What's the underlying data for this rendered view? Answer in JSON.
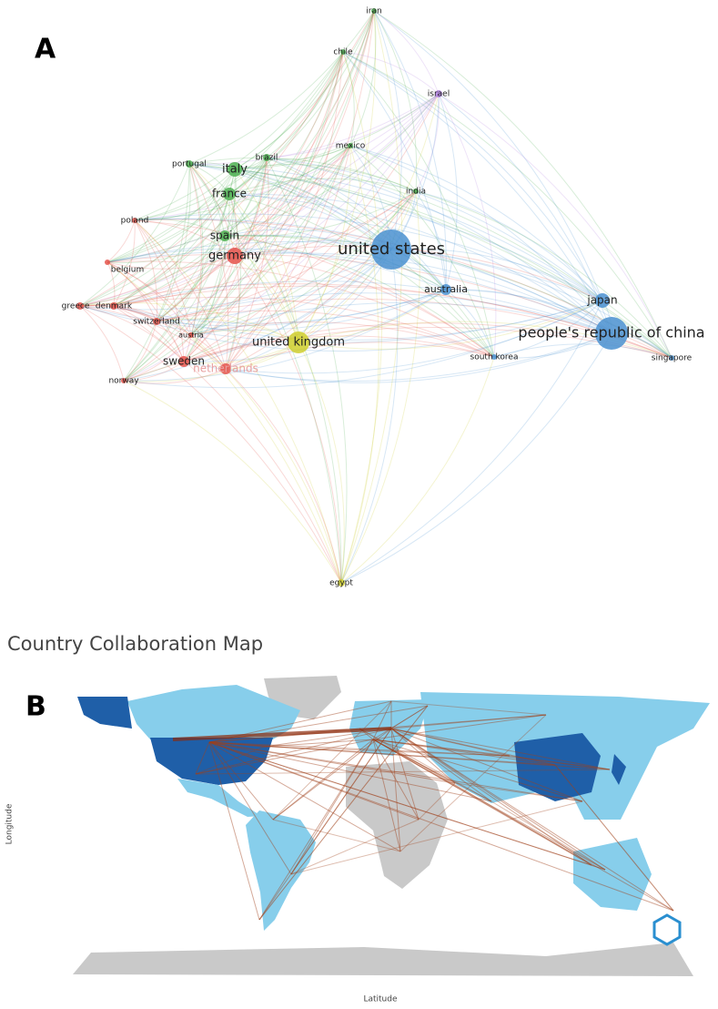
{
  "panel_a": {
    "label": "A",
    "nodes": [
      {
        "label": "iran",
        "color": "#4caf50"
      },
      {
        "label": "chile",
        "color": "#4caf50"
      },
      {
        "label": "israel",
        "color": "#b07fe0"
      },
      {
        "label": "mexico",
        "color": "#4caf50"
      },
      {
        "label": "portugal",
        "color": "#4caf50"
      },
      {
        "label": "brazil",
        "color": "#4caf50"
      },
      {
        "label": "italy",
        "color": "#4caf50"
      },
      {
        "label": "france",
        "color": "#4caf50"
      },
      {
        "label": "india",
        "color": "#4caf50"
      },
      {
        "label": "poland",
        "color": "#e5544b"
      },
      {
        "label": "spain",
        "color": "#4caf50"
      },
      {
        "label": "germany",
        "color": "#e5544b"
      },
      {
        "label": "united states",
        "color": "#4a90d0"
      },
      {
        "label": "belgium",
        "color": "#e5544b"
      },
      {
        "label": "australia",
        "color": "#4a90d0"
      },
      {
        "label": "japan",
        "color": "#4a90d0"
      },
      {
        "label": "greece",
        "color": "#e5544b"
      },
      {
        "label": "denmark",
        "color": "#e5544b"
      },
      {
        "label": "switzerland",
        "color": "#e5544b"
      },
      {
        "label": "austria",
        "color": "#e5544b"
      },
      {
        "label": "united kingdom",
        "color": "#cfcf2e"
      },
      {
        "label": "people's republic of china",
        "color": "#4a90d0"
      },
      {
        "label": "sweden",
        "color": "#e5544b"
      },
      {
        "label": "netherlands",
        "color": "#e5544b"
      },
      {
        "label": "norway",
        "color": "#e5544b"
      },
      {
        "label": "south korea",
        "color": "#4a90d0"
      },
      {
        "label": "singapore",
        "color": "#4a90d0"
      },
      {
        "label": "egypt",
        "color": "#cfcf2e"
      }
    ]
  },
  "panel_b": {
    "label": "B",
    "title": "Country Collaboration Map",
    "x_label": "Latitude",
    "y_label": "Longitude"
  }
}
